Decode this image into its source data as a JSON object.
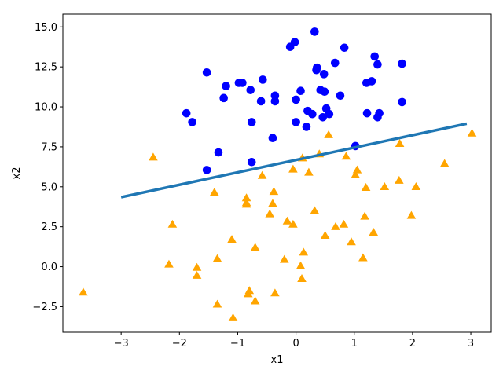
{
  "chart_data": {
    "type": "scatter",
    "title": "",
    "xlabel": "x1",
    "ylabel": "x2",
    "xlim": [
      -4.0,
      3.35
    ],
    "ylim": [
      -4.1,
      15.8
    ],
    "xticks": [
      -3,
      -2,
      -1,
      0,
      1,
      2,
      3
    ],
    "xtick_labels": [
      "−3",
      "−2",
      "−1",
      "0",
      "1",
      "2",
      "3"
    ],
    "yticks": [
      -2.5,
      0.0,
      2.5,
      5.0,
      7.5,
      10.0,
      12.5,
      15.0
    ],
    "ytick_labels": [
      "−2.5",
      "0.0",
      "2.5",
      "5.0",
      "7.5",
      "10.0",
      "12.5",
      "15.0"
    ],
    "grid": false,
    "series": [
      {
        "marker": "circle",
        "color": "#0000ff",
        "points": [
          [
            -1.53,
            12.15
          ],
          [
            -1.88,
            9.6
          ],
          [
            -1.78,
            9.05
          ],
          [
            -1.53,
            6.05
          ],
          [
            -1.33,
            7.15
          ],
          [
            -1.24,
            10.55
          ],
          [
            -1.2,
            11.3
          ],
          [
            -0.98,
            11.5
          ],
          [
            -0.92,
            11.5
          ],
          [
            -0.78,
            11.05
          ],
          [
            -0.76,
            9.05
          ],
          [
            -0.76,
            6.55
          ],
          [
            -0.6,
            10.35
          ],
          [
            -0.57,
            11.7
          ],
          [
            -0.4,
            8.05
          ],
          [
            -0.36,
            10.7
          ],
          [
            -0.36,
            10.35
          ],
          [
            -0.1,
            13.75
          ],
          [
            -0.02,
            14.05
          ],
          [
            0.0,
            10.45
          ],
          [
            0.0,
            9.05
          ],
          [
            0.08,
            11.0
          ],
          [
            0.18,
            8.75
          ],
          [
            0.2,
            9.75
          ],
          [
            0.28,
            9.55
          ],
          [
            0.32,
            14.7
          ],
          [
            0.35,
            12.3
          ],
          [
            0.36,
            12.45
          ],
          [
            0.42,
            11.05
          ],
          [
            0.46,
            9.35
          ],
          [
            0.48,
            12.05
          ],
          [
            0.49,
            10.95
          ],
          [
            0.52,
            9.9
          ],
          [
            0.57,
            9.55
          ],
          [
            0.67,
            12.75
          ],
          [
            0.76,
            10.7
          ],
          [
            0.83,
            13.7
          ],
          [
            1.02,
            7.55
          ],
          [
            1.21,
            11.5
          ],
          [
            1.22,
            9.6
          ],
          [
            1.3,
            11.6
          ],
          [
            1.35,
            13.15
          ],
          [
            1.4,
            12.65
          ],
          [
            1.4,
            9.35
          ],
          [
            1.43,
            9.6
          ],
          [
            1.82,
            12.7
          ],
          [
            1.82,
            10.3
          ]
        ]
      },
      {
        "marker": "triangle",
        "color": "#ffa500",
        "points": [
          [
            -3.65,
            -1.6
          ],
          [
            -2.45,
            6.85
          ],
          [
            -2.18,
            0.15
          ],
          [
            -2.12,
            2.65
          ],
          [
            -1.7,
            -0.05
          ],
          [
            -1.7,
            -0.55
          ],
          [
            -1.4,
            4.65
          ],
          [
            -1.35,
            0.5
          ],
          [
            -1.35,
            -2.35
          ],
          [
            -1.1,
            1.7
          ],
          [
            -1.08,
            -3.2
          ],
          [
            -0.85,
            4.3
          ],
          [
            -0.85,
            4.0
          ],
          [
            -0.85,
            3.9
          ],
          [
            -0.82,
            -1.7
          ],
          [
            -0.8,
            -1.5
          ],
          [
            -0.7,
            1.2
          ],
          [
            -0.7,
            -2.15
          ],
          [
            -0.58,
            5.7
          ],
          [
            -0.45,
            3.3
          ],
          [
            -0.4,
            3.95
          ],
          [
            -0.38,
            4.7
          ],
          [
            -0.36,
            -1.65
          ],
          [
            -0.2,
            0.45
          ],
          [
            -0.15,
            2.85
          ],
          [
            -0.05,
            6.1
          ],
          [
            -0.05,
            2.65
          ],
          [
            0.08,
            0.05
          ],
          [
            0.1,
            -0.75
          ],
          [
            0.11,
            6.8
          ],
          [
            0.13,
            0.9
          ],
          [
            0.22,
            5.9
          ],
          [
            0.32,
            3.5
          ],
          [
            0.4,
            7.05
          ],
          [
            0.5,
            1.95
          ],
          [
            0.56,
            8.25
          ],
          [
            0.68,
            2.5
          ],
          [
            0.82,
            2.65
          ],
          [
            0.86,
            6.9
          ],
          [
            0.95,
            1.55
          ],
          [
            1.02,
            5.75
          ],
          [
            1.05,
            6.05
          ],
          [
            1.15,
            0.55
          ],
          [
            1.18,
            3.15
          ],
          [
            1.2,
            4.95
          ],
          [
            1.33,
            2.15
          ],
          [
            1.52,
            5.0
          ],
          [
            1.77,
            5.4
          ],
          [
            1.78,
            7.7
          ],
          [
            1.98,
            3.2
          ],
          [
            2.06,
            5.0
          ],
          [
            2.55,
            6.45
          ],
          [
            3.02,
            8.35
          ]
        ]
      }
    ],
    "line": {
      "color": "#1f77b4",
      "points": [
        [
          -3.0,
          4.35
        ],
        [
          2.93,
          8.95
        ]
      ]
    },
    "axis_color": "#000000"
  }
}
